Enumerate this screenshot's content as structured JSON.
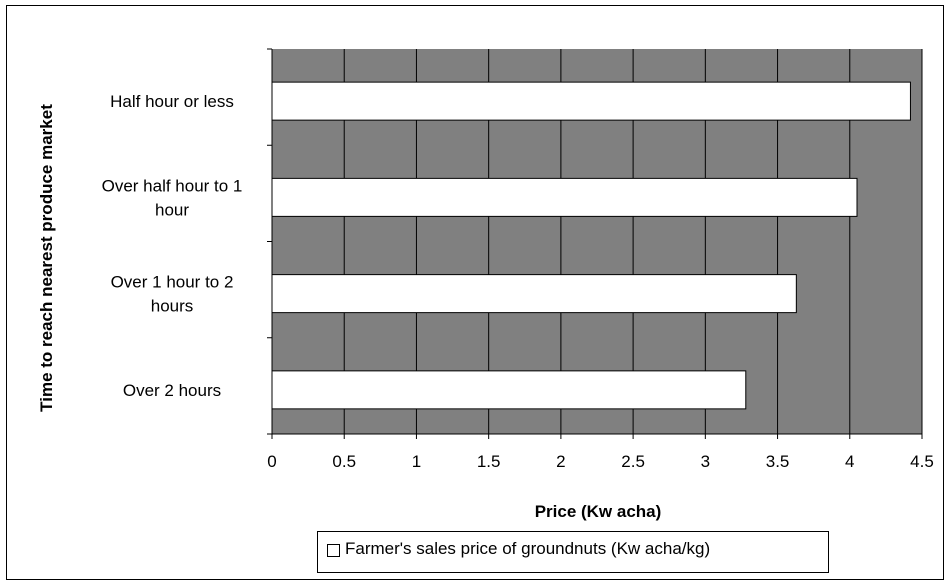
{
  "chart_data": {
    "type": "bar",
    "orientation": "horizontal",
    "categories": [
      [
        "Half hour or less"
      ],
      [
        "Over half hour to 1",
        "hour"
      ],
      [
        "Over 1 hour to 2",
        "hours"
      ],
      [
        "Over 2 hours"
      ]
    ],
    "series": [
      {
        "name": "Farmer's sales price of groundnuts (Kw acha/kg)",
        "values": [
          4.42,
          4.05,
          3.63,
          3.28
        ],
        "color": "#ffffff"
      }
    ],
    "xlabel": "Price (Kw acha)",
    "ylabel": "Time to reach nearest produce market",
    "xlim": [
      0,
      4.5
    ],
    "xticks": [
      "0",
      "0.5",
      "1",
      "1.5",
      "2",
      "2.5",
      "3",
      "3.5",
      "4",
      "4.5"
    ],
    "grid": true,
    "plot_background": "#808080",
    "legend_position": "bottom"
  }
}
